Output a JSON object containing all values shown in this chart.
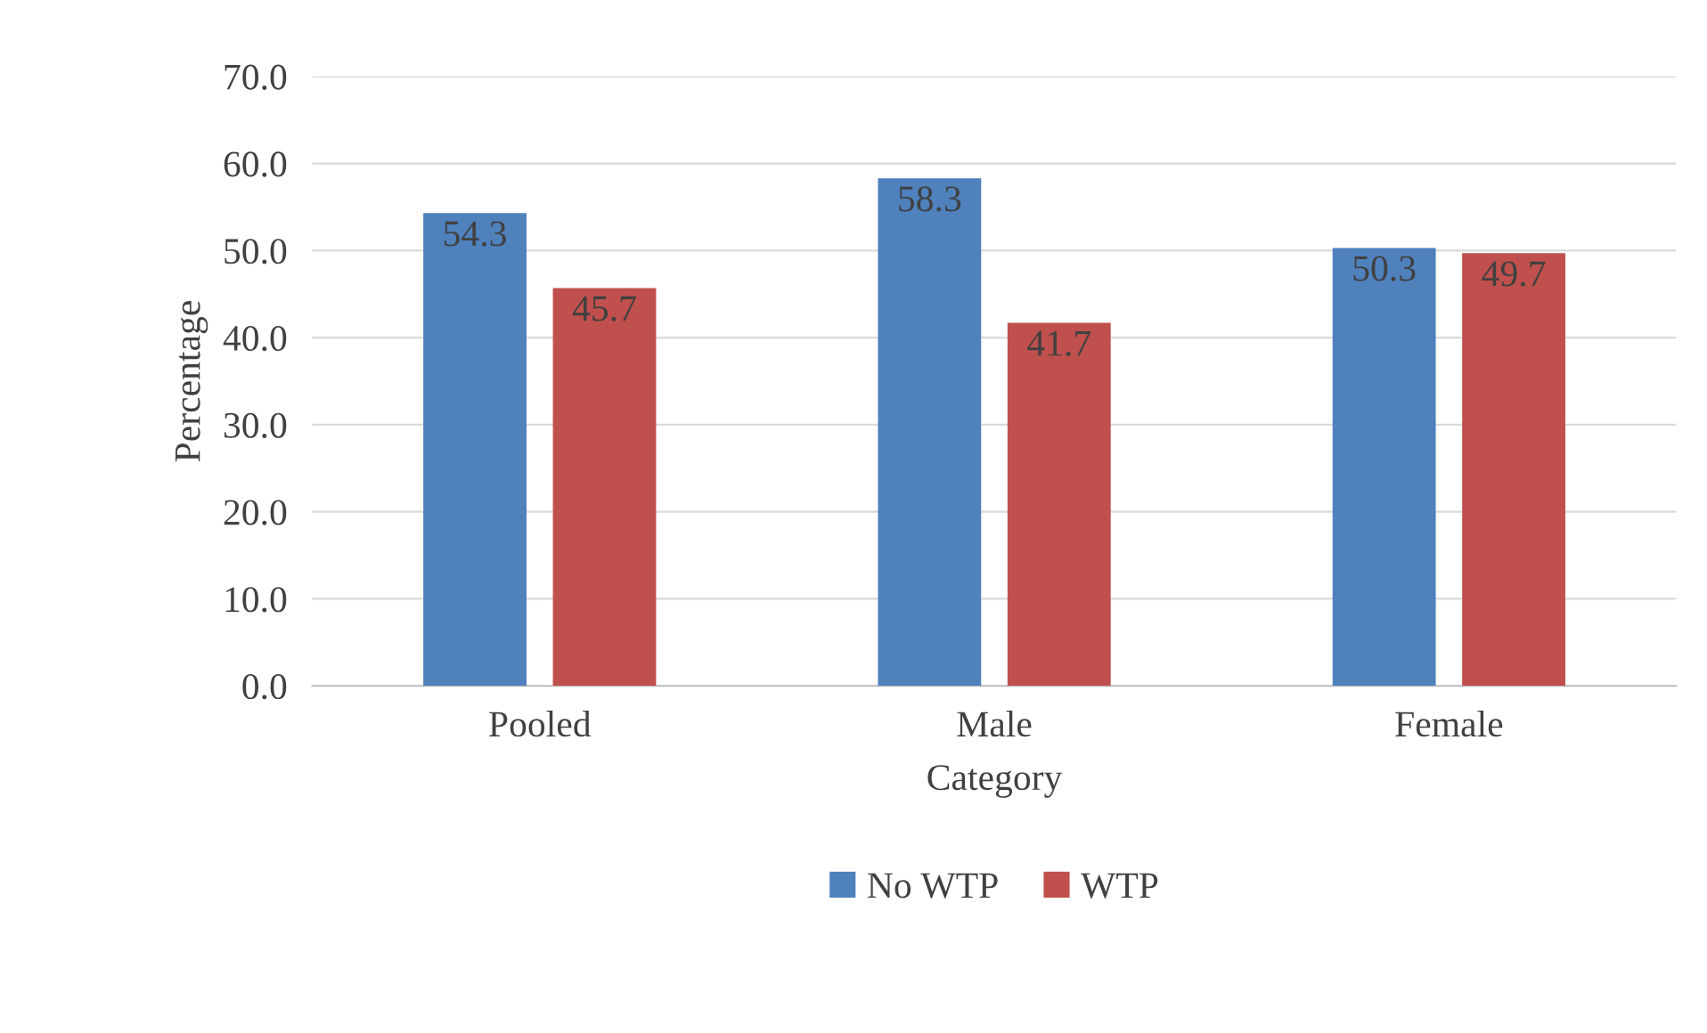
{
  "chart_data": {
    "type": "bar",
    "xlabel": "Category",
    "ylabel": "Percentage",
    "categories": [
      "Pooled",
      "Male",
      "Female"
    ],
    "series": [
      {
        "name": "No WTP",
        "color": "#4f81bd",
        "values": [
          54.3,
          58.3,
          50.3
        ]
      },
      {
        "name": "WTP",
        "color": "#c0504d",
        "values": [
          45.7,
          41.7,
          49.7
        ]
      }
    ],
    "ylim": [
      0,
      70
    ],
    "yticks": [
      {
        "value": 0,
        "label": "0.0"
      },
      {
        "value": 10,
        "label": "10.0"
      },
      {
        "value": 20,
        "label": "20.0"
      },
      {
        "value": 30,
        "label": "30.0"
      },
      {
        "value": 40,
        "label": "40.0"
      },
      {
        "value": 50,
        "label": "50.0"
      },
      {
        "value": 60,
        "label": "60.0"
      },
      {
        "value": 70,
        "label": "70.0"
      }
    ],
    "grid": "y",
    "legend": "bottom",
    "data_labels": true
  }
}
